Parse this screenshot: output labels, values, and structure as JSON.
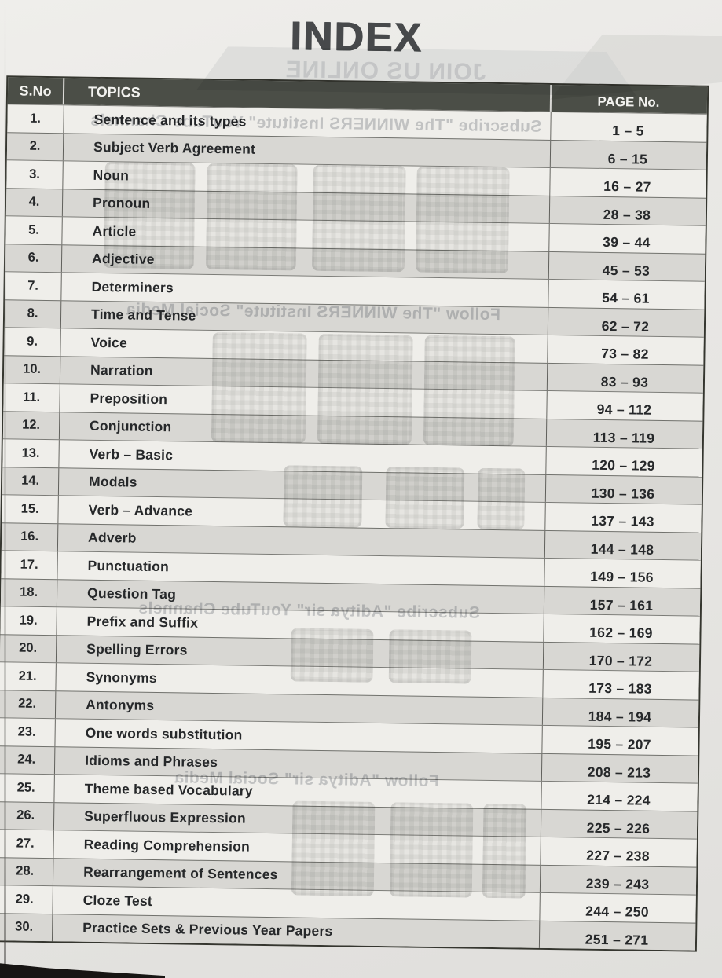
{
  "page_title": "INDEX",
  "table": {
    "headers": {
      "sno": "S.No",
      "topics": "TOPICS",
      "page": "PAGE No."
    },
    "rows": [
      {
        "sno": "1.",
        "topic": "Sentence and its types",
        "pages": "1 – 5"
      },
      {
        "sno": "2.",
        "topic": "Subject Verb Agreement",
        "pages": "6 – 15"
      },
      {
        "sno": "3.",
        "topic": "Noun",
        "pages": "16 – 27"
      },
      {
        "sno": "4.",
        "topic": "Pronoun",
        "pages": "28 – 38"
      },
      {
        "sno": "5.",
        "topic": "Article",
        "pages": "39 – 44"
      },
      {
        "sno": "6.",
        "topic": "Adjective",
        "pages": "45 – 53"
      },
      {
        "sno": "7.",
        "topic": "Determiners",
        "pages": "54 – 61"
      },
      {
        "sno": "8.",
        "topic": "Time and Tense",
        "pages": "62 – 72"
      },
      {
        "sno": "9.",
        "topic": "Voice",
        "pages": "73 – 82"
      },
      {
        "sno": "10.",
        "topic": "Narration",
        "pages": "83 – 93"
      },
      {
        "sno": "11.",
        "topic": "Preposition",
        "pages": "94 – 112"
      },
      {
        "sno": "12.",
        "topic": "Conjunction",
        "pages": "113 – 119"
      },
      {
        "sno": "13.",
        "topic": "Verb – Basic",
        "pages": "120 – 129"
      },
      {
        "sno": "14.",
        "topic": "Modals",
        "pages": "130 – 136"
      },
      {
        "sno": "15.",
        "topic": "Verb – Advance",
        "pages": "137 – 143"
      },
      {
        "sno": "16.",
        "topic": "Adverb",
        "pages": "144 – 148"
      },
      {
        "sno": "17.",
        "topic": "Punctuation",
        "pages": "149 – 156"
      },
      {
        "sno": "18.",
        "topic": "Question Tag",
        "pages": "157 – 161"
      },
      {
        "sno": "19.",
        "topic": "Prefix and Suffix",
        "pages": "162 – 169"
      },
      {
        "sno": "20.",
        "topic": "Spelling Errors",
        "pages": "170 – 172"
      },
      {
        "sno": "21.",
        "topic": "Synonyms",
        "pages": "173 – 183"
      },
      {
        "sno": "22.",
        "topic": "Antonyms",
        "pages": "184 – 194"
      },
      {
        "sno": "23.",
        "topic": "One words substitution",
        "pages": "195 – 207"
      },
      {
        "sno": "24.",
        "topic": "Idioms and Phrases",
        "pages": "208 – 213"
      },
      {
        "sno": "25.",
        "topic": "Theme based Vocabulary",
        "pages": "214 – 224"
      },
      {
        "sno": "26.",
        "topic": "Superfluous Expression",
        "pages": "225 – 226"
      },
      {
        "sno": "27.",
        "topic": "Reading Comprehension",
        "pages": "227 – 238"
      },
      {
        "sno": "28.",
        "topic": "Rearrangement of Sentences",
        "pages": "239 – 243"
      },
      {
        "sno": "29.",
        "topic": "Cloze Test",
        "pages": "244 – 250"
      },
      {
        "sno": "30.",
        "topic": "Practice Sets & Previous Year Papers",
        "pages": "251 – 271"
      }
    ]
  },
  "bleedthrough": {
    "banner": "JOIN US ONLINE",
    "lines": [
      "Subscribe \"The WINNERS Institute\" YouTube Channels",
      "Follow \"The WINNERS Institute\" Social Media",
      "Subscribe \"Aditya sir\" YouTube Channels",
      "Follow \"Aditya sir\" Social Media"
    ]
  },
  "colors": {
    "header_bg": "#4b4e47",
    "row_light": "#efeeea",
    "row_alt": "#d8d7d3",
    "text": "#26282a",
    "title": "#47494b"
  }
}
